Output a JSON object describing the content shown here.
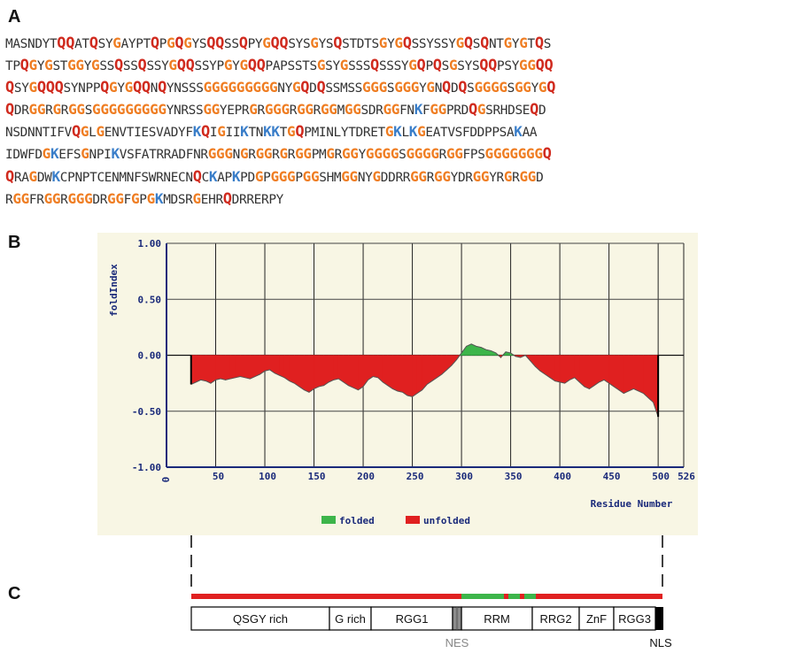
{
  "figure": {
    "panel_labels": {
      "a": "A",
      "b": "B",
      "c": "C"
    }
  },
  "sequence": {
    "lines": [
      "MASNDYTQQATQSYGAYPTQPGQGYSQQSSQPYGQQSYSGYSQSTDTSGYGQSSYSSYGQSQNTGYGTQS",
      "TPQGYGSTGGYGSSQSSQSSYGQQSSYPGYGQQPAPSSTSGSYGSSSQSSSYGQPQSGSYSQQPSYGGQQ",
      "QSYGQQQSYNPPQGYGQQNQYNSSSGGGGGGGGGNYGQDQSSMSSGGGSGGGYGNQDQSGGGGSGGYGQ",
      "QDRGGRGRGGSGGGGGGGGGYNRSSGGYEPRGRGGGRGGRGGMGGSDRGGFNKFGGPRDQGSRHDSEQD",
      "NSDNNTIFVQGLGENVTIESVADYFKQIGIIKTNKKTGQPMINLYTDRETGKLKGEATVSFDDPPSAKAA",
      "IDWFDGKEFSGNPIKVSFATRRADFNRGGGNGRGGRGRGGPMGRGGYGGGGSGGGGRGGFPSGGGGGGGQ",
      "QRAGDWKCPNPTCENMNFSWRNECNQCKAPKPDGPGGGPGGSHMGGNYGDDRRGGRGGYDRGGYRGRGGD",
      "RGGFRGGRGGGDRGGFGPGKMDSRGEHRQDRRERPY"
    ]
  },
  "chart_data": {
    "type": "area",
    "ylabel": "foldIndex",
    "xlabel": "Residue Number",
    "xlim": [
      0,
      526
    ],
    "ylim": [
      -1.0,
      1.0
    ],
    "x_ticks": [
      "0",
      "50",
      "100",
      "150",
      "200",
      "250",
      "300",
      "350",
      "400",
      "450",
      "500",
      "526"
    ],
    "x_tick_values": [
      0,
      50,
      100,
      150,
      200,
      250,
      300,
      350,
      400,
      450,
      500,
      526
    ],
    "y_ticks": [
      "1.00",
      "0.50",
      "0.00",
      "-0.50",
      "-1.00"
    ],
    "y_tick_values": [
      1.0,
      0.5,
      0.0,
      -0.5,
      -1.0
    ],
    "grid": true,
    "legend_position": "bottom",
    "legend": [
      {
        "label": "folded",
        "color": "#3db54a"
      },
      {
        "label": "unfolded",
        "color": "#e02020"
      }
    ],
    "colors": {
      "folded": "#3db54a",
      "unfolded": "#e02020",
      "outline": "#555555"
    },
    "series": [
      {
        "x": [
          25,
          30,
          35,
          40,
          45,
          50,
          55,
          60,
          65,
          70,
          75,
          80,
          85,
          90,
          95,
          100,
          105,
          110,
          115,
          120,
          125,
          130,
          135,
          140,
          145,
          150,
          155,
          160,
          165,
          170,
          175,
          180,
          185,
          190,
          195,
          200,
          205,
          210,
          215,
          220,
          225,
          230,
          235,
          240,
          245,
          250,
          255,
          260,
          265,
          270,
          275,
          280,
          285,
          290,
          295,
          300,
          305,
          310,
          315,
          320,
          325,
          330,
          335,
          340,
          345,
          350,
          355,
          360,
          365,
          370,
          375,
          380,
          385,
          390,
          395,
          400,
          405,
          410,
          415,
          420,
          425,
          430,
          435,
          440,
          445,
          450,
          455,
          460,
          465,
          470,
          475,
          480,
          485,
          490,
          495,
          500
        ],
        "values": [
          -0.26,
          -0.24,
          -0.22,
          -0.23,
          -0.25,
          -0.22,
          -0.21,
          -0.22,
          -0.21,
          -0.2,
          -0.19,
          -0.2,
          -0.21,
          -0.19,
          -0.17,
          -0.14,
          -0.13,
          -0.16,
          -0.18,
          -0.2,
          -0.23,
          -0.25,
          -0.28,
          -0.31,
          -0.33,
          -0.3,
          -0.28,
          -0.27,
          -0.24,
          -0.22,
          -0.21,
          -0.24,
          -0.27,
          -0.29,
          -0.31,
          -0.28,
          -0.22,
          -0.19,
          -0.2,
          -0.24,
          -0.27,
          -0.3,
          -0.32,
          -0.33,
          -0.36,
          -0.37,
          -0.34,
          -0.31,
          -0.26,
          -0.23,
          -0.2,
          -0.17,
          -0.13,
          -0.09,
          -0.04,
          0.02,
          0.08,
          0.1,
          0.08,
          0.07,
          0.05,
          0.04,
          0.02,
          -0.02,
          0.03,
          0.02,
          -0.01,
          -0.02,
          0.0,
          -0.05,
          -0.1,
          -0.14,
          -0.17,
          -0.2,
          -0.23,
          -0.24,
          -0.25,
          -0.22,
          -0.2,
          -0.24,
          -0.28,
          -0.3,
          -0.27,
          -0.24,
          -0.22,
          -0.25,
          -0.28,
          -0.31,
          -0.34,
          -0.32,
          -0.3,
          -0.32,
          -0.34,
          -0.38,
          -0.42,
          -0.55
        ]
      }
    ]
  },
  "domain_map": {
    "domains": [
      {
        "label": "QSGY rich"
      },
      {
        "label": "G rich"
      },
      {
        "label": "RGG1"
      },
      {
        "label": "RRM"
      },
      {
        "label": "RRG2"
      },
      {
        "label": "ZnF"
      },
      {
        "label": "RGG3"
      }
    ],
    "nes_label": "NES",
    "nls_label": "NLS"
  }
}
